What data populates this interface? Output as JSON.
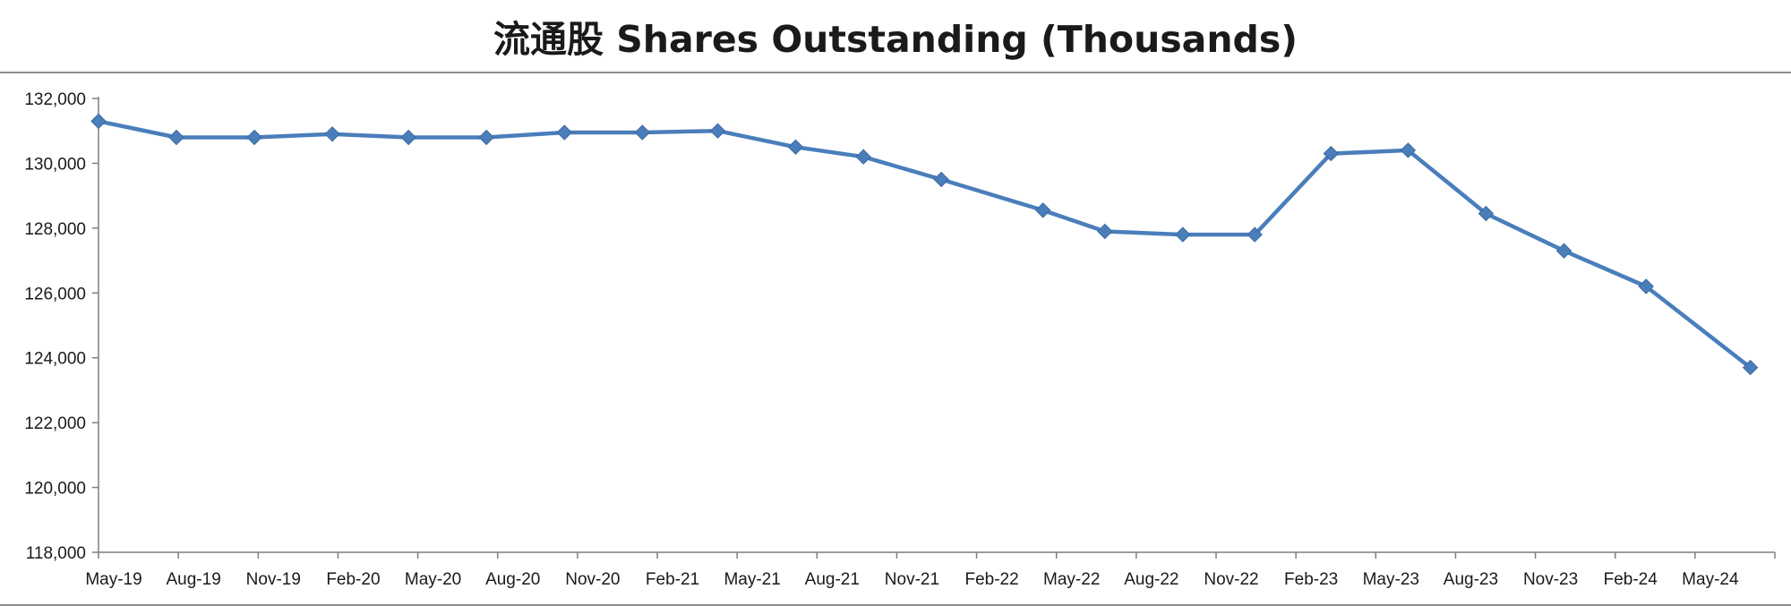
{
  "chart_data": {
    "type": "line",
    "title": "流通股 Shares Outstanding (Thousands)",
    "xlabel": "",
    "ylabel": "",
    "ylim": [
      118000,
      132000
    ],
    "yticks": [
      118000,
      120000,
      122000,
      124000,
      126000,
      128000,
      130000,
      132000
    ],
    "ytick_labels": [
      "118,000",
      "120,000",
      "122,000",
      "124,000",
      "126,000",
      "128,000",
      "130,000",
      "132,000"
    ],
    "xtick_labels": [
      "May-19",
      "Aug-19",
      "Nov-19",
      "Feb-20",
      "May-20",
      "Aug-20",
      "Nov-20",
      "Feb-21",
      "May-21",
      "Aug-21",
      "Nov-21",
      "Feb-22",
      "May-22",
      "Aug-22",
      "Nov-22",
      "Feb-23",
      "May-23",
      "Aug-23",
      "Nov-23",
      "Feb-24",
      "May-24"
    ],
    "x_range": [
      "2019-05-01",
      "2024-09-30"
    ],
    "grid": false,
    "legend": "none",
    "series_color": "#4a7ebb",
    "marker": "diamond",
    "series": [
      {
        "x": [
          "2019-05-01",
          "2019-08-01",
          "2019-11-01",
          "2020-02-01",
          "2020-05-01",
          "2020-08-01",
          "2020-11-01",
          "2021-02-01",
          "2021-05-01",
          "2021-08-01",
          "2021-10-20",
          "2022-01-20",
          "2022-05-20",
          "2022-08-01",
          "2022-11-01",
          "2023-01-25",
          "2023-04-25",
          "2023-07-25",
          "2023-10-25",
          "2024-01-25",
          "2024-05-01",
          "2024-09-01"
        ],
        "values": [
          131300,
          130800,
          130800,
          130900,
          130800,
          130800,
          130950,
          130950,
          131000,
          130500,
          130200,
          129500,
          128550,
          127900,
          127800,
          127800,
          130300,
          130400,
          128450,
          127300,
          126200,
          123700
        ]
      }
    ]
  }
}
